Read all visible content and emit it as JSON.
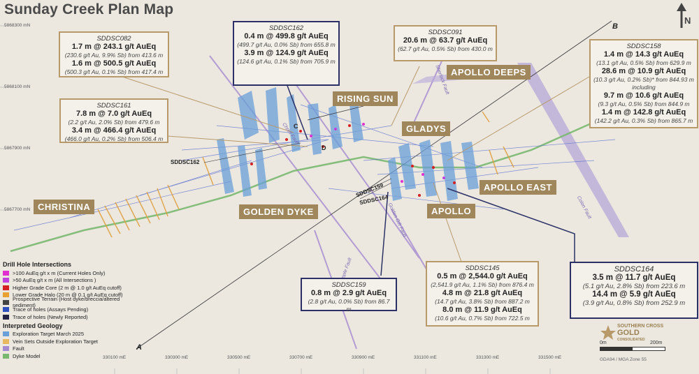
{
  "title": "Sunday Creek Plan Map",
  "north_label": "N",
  "grid_northing": [
    "5868300 mN",
    "5868100 mN",
    "5867900 mN",
    "5867700 mN"
  ],
  "grid_easting": [
    "330100 mE",
    "330300 mE",
    "330500 mE",
    "330700 mE",
    "330900 mE",
    "331100 mE",
    "331300 mE",
    "331500 mE"
  ],
  "section_line": {
    "start": "A",
    "end": "B"
  },
  "zones": {
    "rising_sun": "RISING SUN",
    "apollo_deeps": "APOLLO DEEPS",
    "gladys": "GLADYS",
    "apollo_east": "APOLLO EAST",
    "apollo": "APOLLO",
    "golden_dyke": "GOLDEN DYKE",
    "christina": "CHRISTINA"
  },
  "hole_labels": {
    "sddsc162": "SDDSC162",
    "sddsc159": "SDDSC159",
    "sddsc164": "SDDSC164",
    "c": "C",
    "d": "D"
  },
  "fault_labels": {
    "sherlock": "Sherlock Fault",
    "golden_gift": "Golden Gift Fault",
    "apple": "Apple Fault",
    "colon": "Colon Fault",
    "christ": "Christ Fault"
  },
  "intersections": {
    "sddsc082": {
      "hole": "SDDSC082",
      "lines": [
        "1.7 m @ 243.1 g/t AuEq",
        "(230.6 g/t Au, 9.9% Sb) from 413.6 m",
        "1.6 m @ 500.5 g/t AuEq",
        "(500.3 g/t Au, 0.1% Sb) from 417.4 m"
      ]
    },
    "sddsc162": {
      "hole": "SDDSC162",
      "lines": [
        "0.4 m @ 499.8 g/t AuEq",
        "(499.7 g/t Au, 0.0% Sb) from 655.8 m",
        "3.9 m @ 124.9 g/t AuEq",
        "(124.6 g/t Au, 0.1% Sb) from 705.9 m"
      ]
    },
    "sddsc091": {
      "hole": "SDDSC091",
      "lines": [
        "20.6 m @ 63.7 g/t AuEq",
        "(62.7 g/t Au, 0.5% Sb) from 430.0 m"
      ]
    },
    "sddsc158": {
      "hole": "SDDSC158",
      "lines": [
        "1.4 m @ 14.3 g/t AuEq",
        "(13.1 g/t Au, 0.5% Sb) from 629.9 m",
        "28.6 m @ 10.9 g/t AuEq",
        "(10.3 g/t Au, 0.2% Sb)* from 844.93 m",
        "including",
        "9.7 m @ 10.6 g/t AuEq",
        "(9.3 g/t Au, 0.5% Sb) from 844.9 m",
        "1.4 m @ 142.8 g/t AuEq",
        "(142.2 g/t Au, 0.3% Sb) from 865.7 m"
      ]
    },
    "sddsc161": {
      "hole": "SDDSC161",
      "lines": [
        "7.8 m @ 7.0 g/t AuEq",
        "(2.2 g/t Au, 2.0% Sb) from 479.6 m",
        "3.4 m @ 466.4 g/t AuEq",
        "(466.0 g/t Au, 0.2% Sb) from 506.4 m"
      ]
    },
    "sddsc159": {
      "hole": "SDDSC159",
      "lines": [
        "0.8 m @ 2.9 g/t AuEq",
        "(2.8 g/t Au, 0.0% Sb) from 86.7 m"
      ]
    },
    "sddsc145": {
      "hole": "SDDSC145",
      "lines": [
        "0.5 m @ 2,544.0 g/t AuEq",
        "(2,541.9 g/t Au, 1.1% Sb) from 876.4 m",
        "4.8 m @ 21.8 g/t AuEq",
        "(14.7 g/t Au, 3.8% Sb) from 887.2 m",
        "8.0 m @ 11.9 g/t AuEq",
        "(10.6 g/t Au, 0.7% Sb) from 722.5 m"
      ]
    },
    "sddsc164": {
      "hole": "SDDSC164",
      "lines": [
        "3.5 m @ 11.7 g/t AuEq",
        "(5.1 g/t Au, 2.8% Sb) from 223.6 m",
        "14.4 m @ 5.9 g/t AuEq",
        "(3.9 g/t Au, 0.8% Sb) from 252.9 m"
      ]
    }
  },
  "legend": {
    "drill_heading": "Drill Hole Intersections",
    "drill_items": [
      {
        "label": ">100 AuEq g/t x m (Current Holes Only)",
        "color": "#e030d0"
      },
      {
        "label": ">50 AuEq g/t x m (All Intersections )",
        "color": "#c040e0"
      },
      {
        "label": "Higher Grade Core (2 m @ 1.0 g/t AuEq cutoff)",
        "color": "#d42020"
      },
      {
        "label": "Lower Grade Halo (20 m @ 0.1 g/t AuEq cutoff)",
        "color": "#e8a030"
      },
      {
        "label": "Prospective Terrain (Host dyke/breccia/altered sediment)",
        "color": "#444444"
      },
      {
        "label": "Trace of holes (Assays Pending)",
        "color": "#3050c0"
      },
      {
        "label": "Trace of holes (Newly Reported)",
        "color": "#222244"
      }
    ],
    "geo_heading": "Interpreted Geology",
    "geo_items": [
      {
        "label": "Exploration Target March 2025",
        "color": "#6a9fd8"
      },
      {
        "label": "Vein Sets Outside Exploration Target",
        "color": "#e8b860"
      },
      {
        "label": "Fault",
        "color": "#a48ad0"
      },
      {
        "label": "Dyke Model",
        "color": "#7ab870"
      }
    ]
  },
  "logo": {
    "line1": "SOUTHERN CROSS",
    "line2": "GOLD",
    "line3": "CONSOLIDATED"
  },
  "scale": {
    "start": "0m",
    "end": "200m"
  },
  "projection": "GDA94 / MGA Zone 55",
  "colors": {
    "tag_fill": "#a0865b",
    "box_border_gold": "#b89a6a",
    "box_border_blue": "#2b3166",
    "dyke": "#7ab870",
    "fault": "#a48ad0",
    "target": "#6a9fd8"
  }
}
